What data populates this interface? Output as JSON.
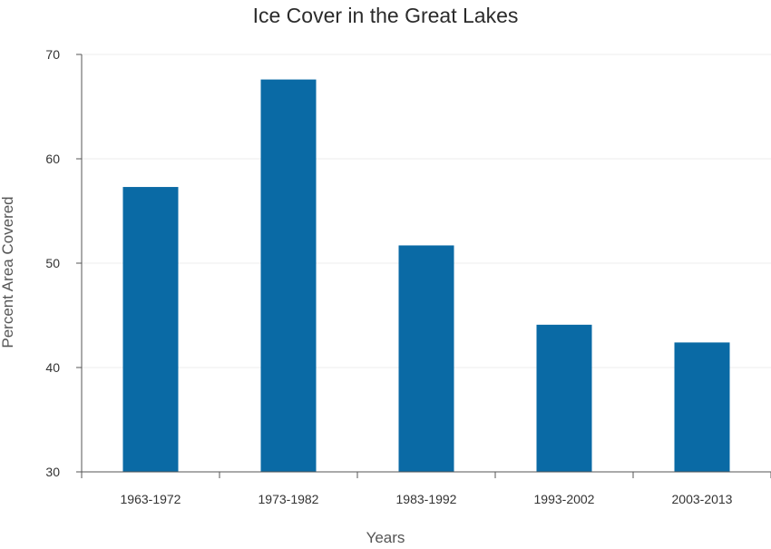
{
  "chart_data": {
    "type": "bar",
    "title": "Ice Cover in the Great Lakes",
    "xlabel": "Years",
    "ylabel": "Percent Area Covered",
    "categories": [
      "1963-1972",
      "1973-1982",
      "1983-1992",
      "1993-2002",
      "2003-2013"
    ],
    "values": [
      57.3,
      67.6,
      51.7,
      44.1,
      42.4
    ],
    "ylim": [
      30,
      70
    ],
    "yticks": [
      30,
      40,
      50,
      60,
      70
    ],
    "grid": true,
    "legend": "none",
    "colors": {
      "bar": "#0a6aa5",
      "axis": "#555555",
      "grid": "#eeeeee"
    }
  }
}
